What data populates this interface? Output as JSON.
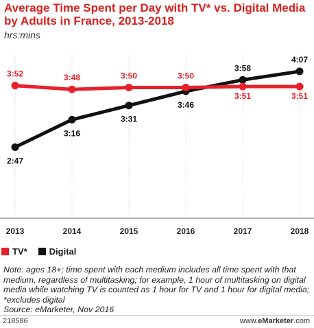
{
  "title": "Average Time Spent per Day with TV* vs. Digital Media by Adults in France, 2013-2018",
  "subtitle": "hrs:mins",
  "note": "Note: ages 18+; time spent with each medium includes all time spent with that medium, regardless of multitasking; for example, 1 hour of multitasking on digital media while watching TV is counted as 1 hour for TV and 1 hour for digital media; *excludes digital",
  "source": "Source: eMarketer, Nov 2016",
  "footer": {
    "chart_id": "218586",
    "brand_prefix": "www.",
    "brand_bold": "eMarketer",
    "brand_suffix": ".com"
  },
  "colors": {
    "tv": "#e8202a",
    "digital": "#111111",
    "title": "#d7221f",
    "grid": "#d9d9d9"
  },
  "chart_data": {
    "type": "line",
    "title": "Average Time Spent per Day with TV* vs. Digital Media by Adults in France, 2013-2018",
    "subtitle": "hrs:mins",
    "categories": [
      "2013",
      "2014",
      "2015",
      "2016",
      "2017",
      "2018"
    ],
    "series": [
      {
        "name": "TV*",
        "values": [
          232,
          228,
          230,
          230,
          231,
          231
        ],
        "labels": [
          "3:52",
          "3:48",
          "3:50",
          "3:50",
          "3:51",
          "3:51"
        ]
      },
      {
        "name": "Digital",
        "values": [
          167,
          196,
          211,
          226,
          238,
          247
        ],
        "labels": [
          "2:47",
          "3:16",
          "3:31",
          "3:46",
          "3:58",
          "4:07"
        ]
      }
    ],
    "unit": "minutes (displayed as hrs:mins)",
    "ylim": [
      150,
      260
    ],
    "grid": "vertical",
    "legend": "bottom-left"
  }
}
